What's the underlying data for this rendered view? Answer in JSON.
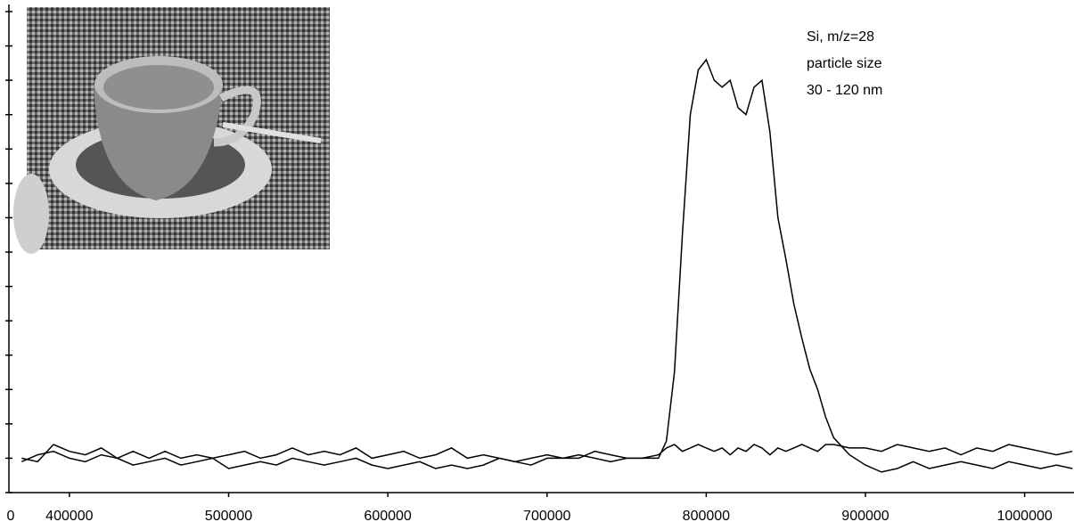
{
  "chart_data": {
    "type": "line",
    "annotation": [
      "Si, m/z=28",
      "particle size",
      "30 - 120 nm"
    ],
    "x_axis_start_label": "0",
    "x": [
      370000,
      380000,
      390000,
      400000,
      410000,
      420000,
      430000,
      440000,
      450000,
      460000,
      470000,
      480000,
      490000,
      500000,
      510000,
      520000,
      530000,
      540000,
      550000,
      560000,
      570000,
      580000,
      590000,
      600000,
      610000,
      620000,
      630000,
      640000,
      650000,
      660000,
      670000,
      680000,
      690000,
      700000,
      710000,
      720000,
      730000,
      740000,
      750000,
      760000,
      770000,
      775000,
      780000,
      785000,
      790000,
      795000,
      800000,
      805000,
      810000,
      815000,
      820000,
      825000,
      830000,
      835000,
      840000,
      845000,
      850000,
      855000,
      860000,
      865000,
      870000,
      875000,
      880000,
      890000,
      900000,
      910000,
      920000,
      930000,
      940000,
      950000,
      960000,
      970000,
      980000,
      990000,
      1000000,
      1010000,
      1020000,
      1030000
    ],
    "series": [
      {
        "color": "#000000",
        "values": [
          0.9,
          1.1,
          1.2,
          1.0,
          0.9,
          1.1,
          1.0,
          0.8,
          0.9,
          1.0,
          0.8,
          0.9,
          1.0,
          0.7,
          0.8,
          0.9,
          0.8,
          1.0,
          0.9,
          0.8,
          0.9,
          1.0,
          0.8,
          0.7,
          0.8,
          0.9,
          0.7,
          0.8,
          0.7,
          0.8,
          1.0,
          0.9,
          0.8,
          1.0,
          1.0,
          1.1,
          1.0,
          0.9,
          1.0,
          1.0,
          1.0,
          1.5,
          3.5,
          7.5,
          11.0,
          12.3,
          12.6,
          12.0,
          11.8,
          12.0,
          11.2,
          11.0,
          11.8,
          12.0,
          10.5,
          8.0,
          6.8,
          5.5,
          4.5,
          3.6,
          3.0,
          2.2,
          1.6,
          1.1,
          0.8,
          0.6,
          0.7,
          0.9,
          0.7,
          0.8,
          0.9,
          0.8,
          0.7,
          0.9,
          0.8,
          0.7,
          0.8,
          0.7
        ]
      },
      {
        "color": "#000000",
        "values": [
          1.0,
          0.9,
          1.4,
          1.2,
          1.1,
          1.3,
          1.0,
          1.2,
          1.0,
          1.2,
          1.0,
          1.1,
          1.0,
          1.1,
          1.2,
          1.0,
          1.1,
          1.3,
          1.1,
          1.2,
          1.1,
          1.3,
          1.0,
          1.1,
          1.2,
          1.0,
          1.1,
          1.3,
          1.0,
          1.1,
          1.0,
          0.9,
          1.0,
          1.1,
          1.0,
          1.0,
          1.2,
          1.1,
          1.0,
          1.0,
          1.1,
          1.3,
          1.4,
          1.2,
          1.3,
          1.4,
          1.3,
          1.2,
          1.3,
          1.1,
          1.3,
          1.2,
          1.4,
          1.3,
          1.1,
          1.3,
          1.2,
          1.3,
          1.4,
          1.3,
          1.2,
          1.4,
          1.4,
          1.3,
          1.3,
          1.2,
          1.4,
          1.3,
          1.2,
          1.3,
          1.1,
          1.3,
          1.2,
          1.4,
          1.3,
          1.2,
          1.1,
          1.2
        ]
      }
    ],
    "xlim": [
      362000,
      1031000
    ],
    "xticks": [
      400000,
      500000,
      600000,
      700000,
      800000,
      900000,
      1000000
    ],
    "ylim": [
      0,
      14
    ],
    "yticks": [
      0,
      1,
      2,
      3,
      4,
      5,
      6,
      7,
      8,
      9,
      10,
      11,
      12,
      13,
      14
    ]
  }
}
